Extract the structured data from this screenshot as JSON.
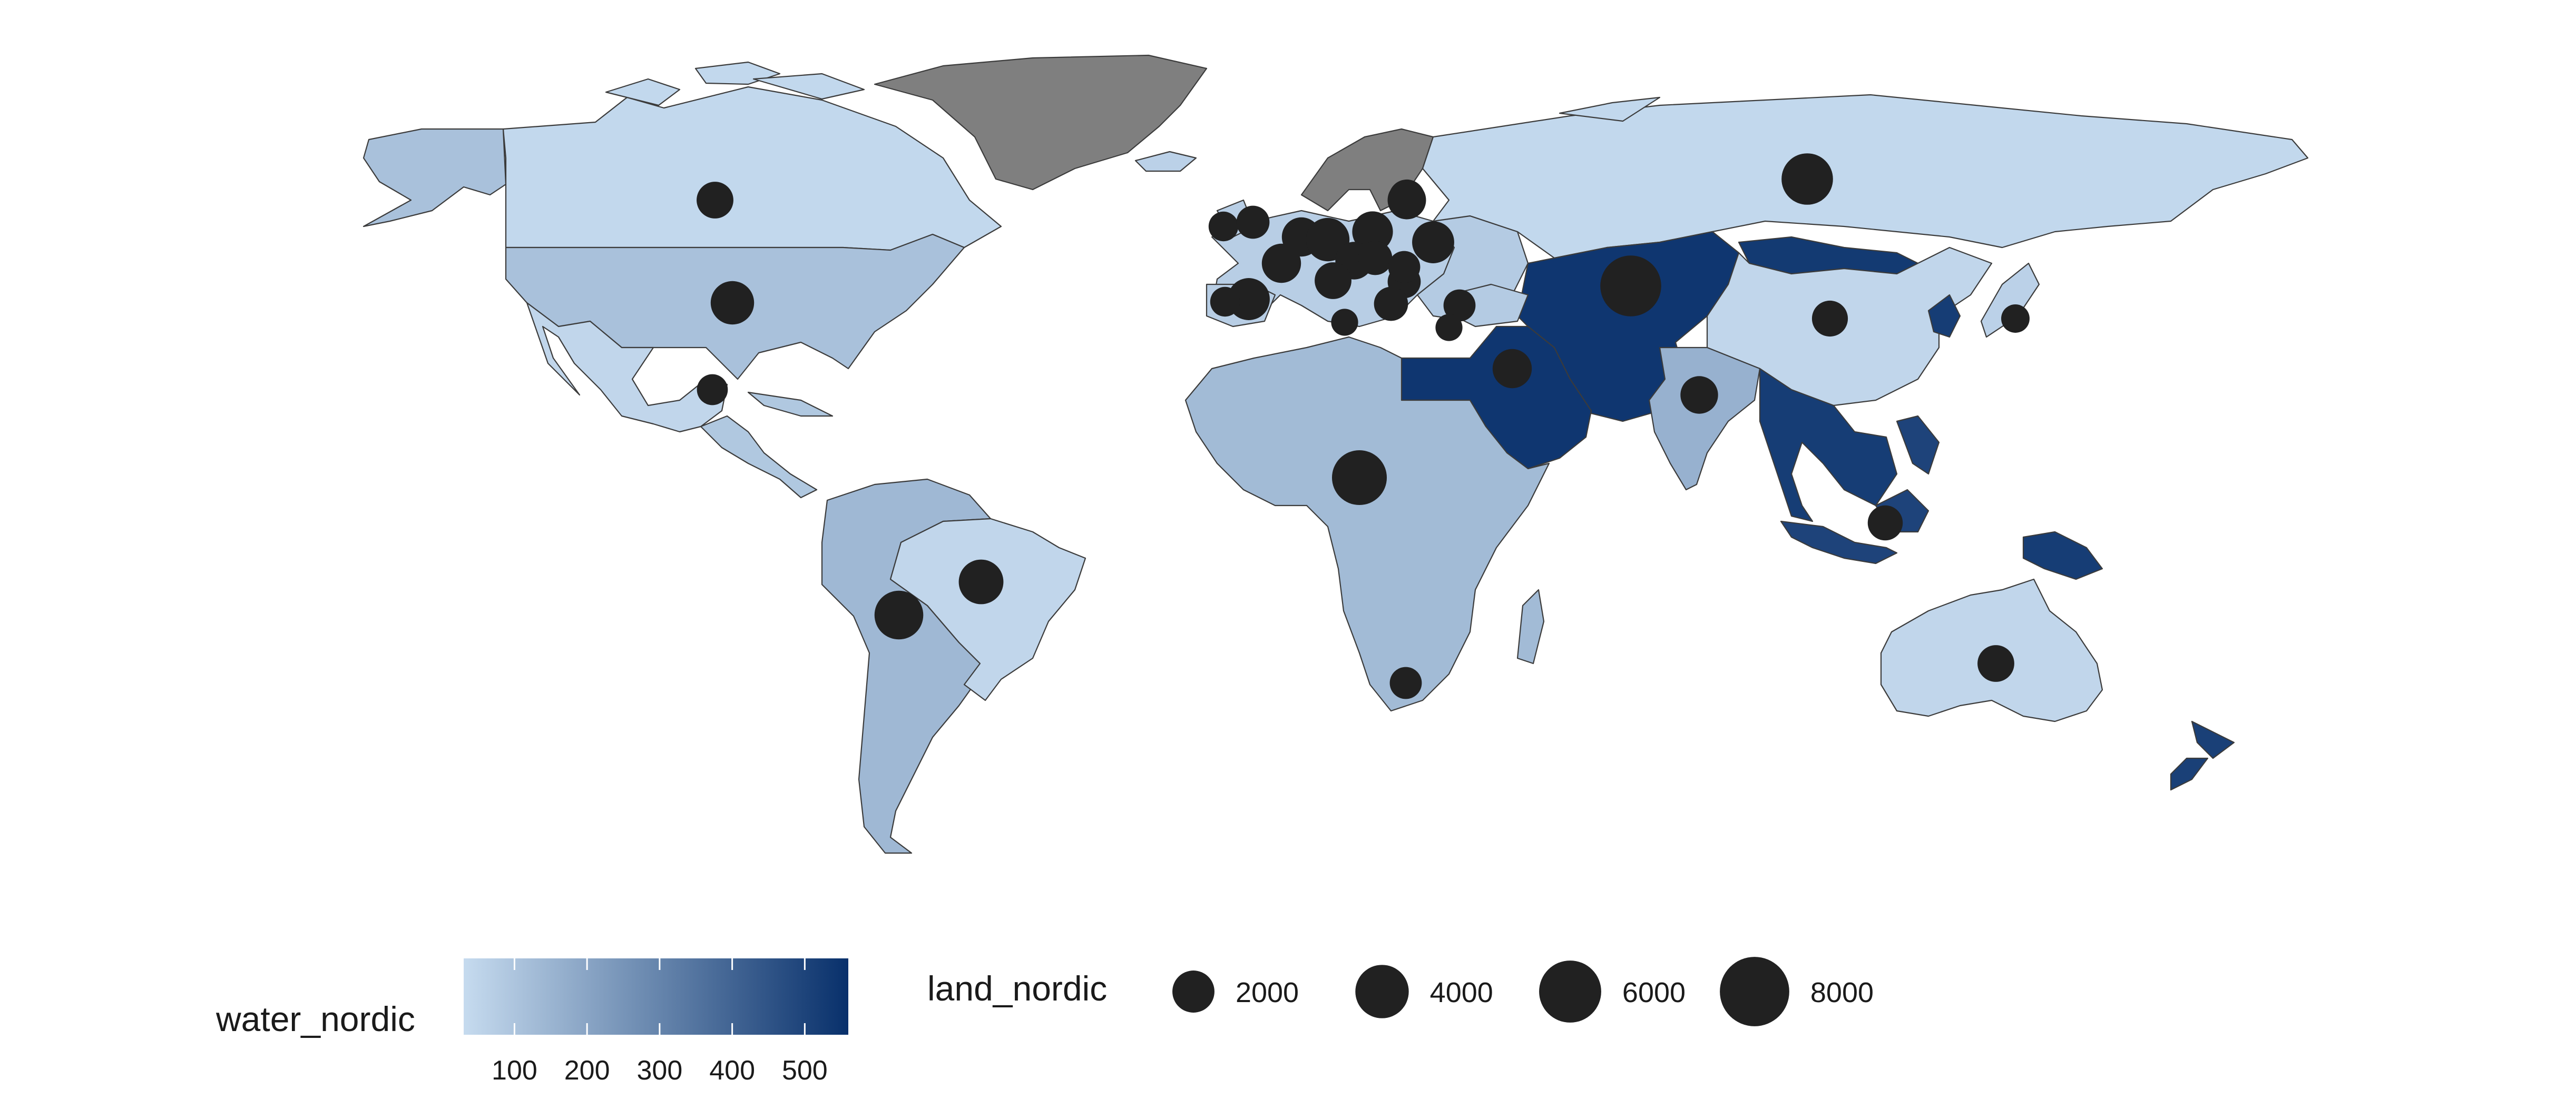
{
  "colors": {
    "low": "#c6dbef",
    "high": "#08306b",
    "missing": "#7f7f7f",
    "bubble": "#212121"
  },
  "legend": {
    "fill_title": "water_nordic",
    "fill_ticks": [
      "100",
      "200",
      "300",
      "400",
      "500"
    ],
    "fill_tick_values": [
      100,
      200,
      300,
      400,
      500
    ],
    "fill_range": [
      30,
      560
    ],
    "size_title": "land_nordic",
    "size_labels": [
      "2000",
      "4000",
      "6000",
      "8000"
    ],
    "size_values": [
      2000,
      4000,
      6000,
      8000
    ]
  },
  "regions": [
    {
      "name": "canada",
      "water_nordic": 40
    },
    {
      "name": "usa",
      "water_nordic": 110
    },
    {
      "name": "alaska",
      "water_nordic": 110
    },
    {
      "name": "mexico",
      "water_nordic": 45
    },
    {
      "name": "central-america",
      "water_nordic": 90
    },
    {
      "name": "brazil",
      "water_nordic": 45
    },
    {
      "name": "andean-south-america",
      "water_nordic": 140
    },
    {
      "name": "greenland",
      "water_nordic": null
    },
    {
      "name": "scandinavia",
      "water_nordic": null
    },
    {
      "name": "iceland",
      "water_nordic": 60
    },
    {
      "name": "western-europe",
      "water_nordic": 70
    },
    {
      "name": "eastern-europe",
      "water_nordic": 80
    },
    {
      "name": "russia",
      "water_nordic": 40
    },
    {
      "name": "africa",
      "water_nordic": 130
    },
    {
      "name": "madagascar",
      "water_nordic": 130
    },
    {
      "name": "egypt-arabia",
      "water_nordic": 540
    },
    {
      "name": "central-asia",
      "water_nordic": 540
    },
    {
      "name": "mongolia",
      "water_nordic": 530
    },
    {
      "name": "china",
      "water_nordic": 45
    },
    {
      "name": "india",
      "water_nordic": 160
    },
    {
      "name": "southeast-asia",
      "water_nordic": 520
    },
    {
      "name": "korea",
      "water_nordic": 520
    },
    {
      "name": "japan",
      "water_nordic": 60
    },
    {
      "name": "indonesia",
      "water_nordic": 500
    },
    {
      "name": "papua",
      "water_nordic": 520
    },
    {
      "name": "australia",
      "water_nordic": 45
    },
    {
      "name": "new-zealand",
      "water_nordic": 510
    }
  ],
  "points": [
    {
      "name": "canada",
      "land_nordic": 1300
    },
    {
      "name": "usa",
      "land_nordic": 2200
    },
    {
      "name": "mexico",
      "land_nordic": 700
    },
    {
      "name": "brazil",
      "land_nordic": 2400
    },
    {
      "name": "bolivia",
      "land_nordic": 3100
    },
    {
      "name": "russia",
      "land_nordic": 3600
    },
    {
      "name": "central-asia",
      "land_nordic": 5700
    },
    {
      "name": "china",
      "land_nordic": 1200
    },
    {
      "name": "japan",
      "land_nordic": 500
    },
    {
      "name": "india",
      "land_nordic": 1400
    },
    {
      "name": "saudi-arabia",
      "land_nordic": 1600
    },
    {
      "name": "africa",
      "land_nordic": 4300
    },
    {
      "name": "south-africa",
      "land_nordic": 800
    },
    {
      "name": "indonesia",
      "land_nordic": 1100
    },
    {
      "name": "australia",
      "land_nordic": 1300
    },
    {
      "name": "ireland",
      "land_nordic": 600
    },
    {
      "name": "uk",
      "land_nordic": 900
    },
    {
      "name": "spain",
      "land_nordic": 2000
    },
    {
      "name": "portugal",
      "land_nordic": 600
    },
    {
      "name": "france",
      "land_nordic": 1600
    },
    {
      "name": "belgium",
      "land_nordic": 1600
    },
    {
      "name": "germany",
      "land_nordic": 2200
    },
    {
      "name": "poland",
      "land_nordic": 1800
    },
    {
      "name": "baltics",
      "land_nordic": 1500
    },
    {
      "name": "finland",
      "land_nordic": 1200
    },
    {
      "name": "austria",
      "land_nordic": 1400
    },
    {
      "name": "hungary",
      "land_nordic": 1000
    },
    {
      "name": "italy",
      "land_nordic": 1300
    },
    {
      "name": "balkans",
      "land_nordic": 900
    },
    {
      "name": "greece",
      "land_nordic": 1000
    },
    {
      "name": "ukraine",
      "land_nordic": 2000
    },
    {
      "name": "romania",
      "land_nordic": 800
    },
    {
      "name": "turkey",
      "land_nordic": 800
    },
    {
      "name": "tunisia",
      "land_nordic": 400
    },
    {
      "name": "cyprus",
      "land_nordic": 400
    }
  ]
}
